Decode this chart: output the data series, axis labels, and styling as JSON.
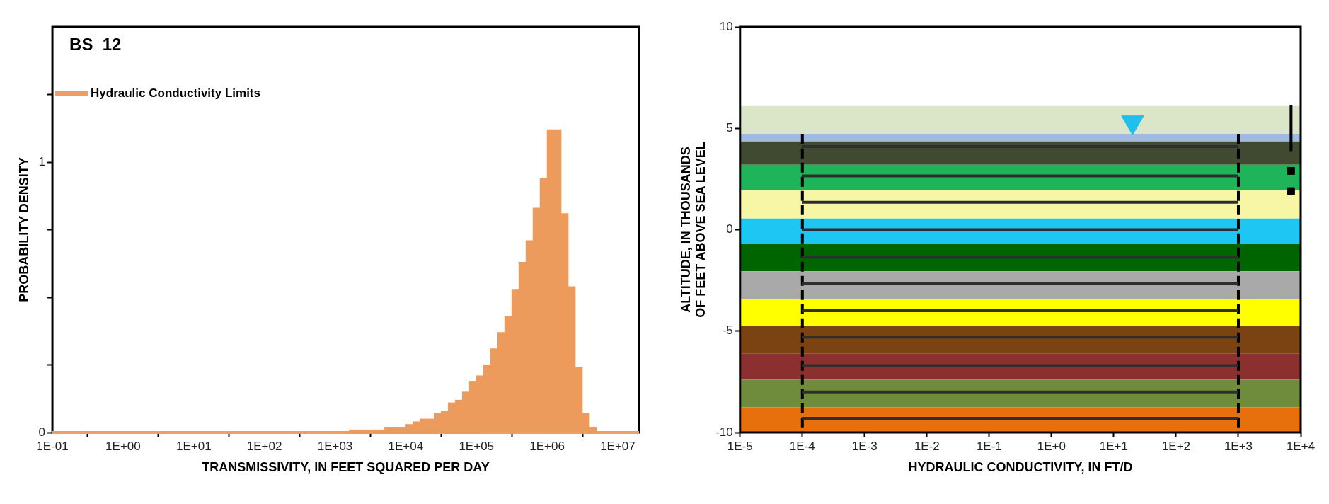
{
  "chart_data": [
    {
      "type": "histogram",
      "title": "BS_12",
      "xlabel": "TRANSMISSIVITY, IN FEET SQUARED PER DAY",
      "ylabel": "PROBABILITY DENSITY",
      "log": "x",
      "legend": "top left",
      "grid": false,
      "color": "#ec9b5c",
      "xlim": [
        0.1,
        20000000
      ],
      "xticks": [
        {
          "value": 0.1,
          "label": "1E-01"
        },
        {
          "value": 1,
          "label": "1E+00"
        },
        {
          "value": 10,
          "label": "1E+01"
        },
        {
          "value": 100,
          "label": "1E+02"
        },
        {
          "value": 1000,
          "label": "1E+03"
        },
        {
          "value": 10000,
          "label": "1E+04"
        },
        {
          "value": 100000,
          "label": "1E+05"
        },
        {
          "value": 1000000,
          "label": "1E+06"
        },
        {
          "value": 10000000,
          "label": "1E+07"
        }
      ],
      "ylim": [
        0,
        1.5
      ],
      "yticks": [
        0,
        {
          "value": 0.25,
          "label": null
        },
        {
          "value": 0.5,
          "label": null
        },
        {
          "value": 0.75,
          "label": null
        },
        1,
        {
          "value": 1.25,
          "label": null
        }
      ],
      "bins": [
        1000,
        1259,
        1585,
        1995,
        2512,
        3162,
        3981,
        5012,
        6310,
        7943,
        10000,
        12589,
        15849,
        19953,
        25119,
        31623,
        39811,
        50119,
        63096,
        79433,
        100000,
        125893,
        158489,
        199526,
        251189,
        316228,
        398107,
        501187,
        630957,
        794328,
        1000000,
        1258925,
        1584893,
        1995262,
        2511886,
        3162278,
        3981072,
        5011872
      ],
      "values": [
        0,
        0,
        0.01,
        0.01,
        0.01,
        0.01,
        0.01,
        0.02,
        0.02,
        0.02,
        0.03,
        0.04,
        0.05,
        0.05,
        0.07,
        0.08,
        0.11,
        0.12,
        0.15,
        0.19,
        0.21,
        0.25,
        0.31,
        0.37,
        0.43,
        0.53,
        0.63,
        0.71,
        0.83,
        0.94,
        1.12,
        1.12,
        0.81,
        0.54,
        0.24,
        0.07,
        0.02
      ],
      "series": [
        {
          "type": "line",
          "name": "Hydraulic Conductivity Limits",
          "color": "#ee9e64",
          "x": [
            0.1,
            20000000
          ],
          "values": [
            0,
            0
          ]
        }
      ]
    },
    {
      "type": "line",
      "xlabel": "HYDRAULIC CONDUCTIVITY, IN FT/D",
      "ylabel": "ALTITUDE, IN THOUSANDS OF FEET ABOVE SEA LEVEL",
      "log": "x",
      "legend": false,
      "grid": false,
      "xlim": [
        1e-05,
        10000
      ],
      "xticks": [
        {
          "value": 1e-05,
          "label": "1E-5"
        },
        {
          "value": 0.0001,
          "label": "1E-4"
        },
        {
          "value": 0.001,
          "label": "1E-3"
        },
        {
          "value": 0.01,
          "label": "1E-2"
        },
        {
          "value": 0.1,
          "label": "1E-1"
        },
        {
          "value": 1,
          "label": "1E+0"
        },
        {
          "value": 10,
          "label": "1E+1"
        },
        {
          "value": 100,
          "label": "1E+2"
        },
        {
          "value": 1000,
          "label": "1E+3"
        },
        {
          "value": 10000,
          "label": "1E+4"
        }
      ],
      "ylim": [
        -10,
        10
      ],
      "yticks": [
        -10,
        -5,
        0,
        5,
        10
      ],
      "bands": [
        {
          "axis": "y",
          "from": 4.7,
          "to": 6.1,
          "color": "#dbe5c8"
        },
        {
          "axis": "y",
          "from": 4.35,
          "to": 4.7,
          "color": "#9fbbe2"
        },
        {
          "axis": "y",
          "from": 3.2,
          "to": 4.35,
          "color": "#404a30"
        },
        {
          "axis": "y",
          "from": 1.95,
          "to": 3.2,
          "color": "#1fb35a"
        },
        {
          "axis": "y",
          "from": 0.55,
          "to": 1.95,
          "color": "#f6f6a4"
        },
        {
          "axis": "y",
          "from": -0.7,
          "to": 0.55,
          "color": "#1ec6f4"
        },
        {
          "axis": "y",
          "from": -2.05,
          "to": -0.7,
          "color": "#006400"
        },
        {
          "axis": "y",
          "from": -3.4,
          "to": -2.05,
          "color": "#a9a9a9"
        },
        {
          "axis": "y",
          "from": -4.75,
          "to": -3.4,
          "color": "#ffff00"
        },
        {
          "axis": "y",
          "from": -6.1,
          "to": -4.75,
          "color": "#7b4212"
        },
        {
          "axis": "y",
          "from": -7.4,
          "to": -6.1,
          "color": "#8b2f2f"
        },
        {
          "axis": "y",
          "from": -8.75,
          "to": -7.4,
          "color": "#6f8c3d"
        },
        {
          "axis": "y",
          "from": -10,
          "to": -8.75,
          "color": "#e8700c"
        }
      ],
      "series": [
        {
          "color": "#2e2e2e",
          "x": [
            0.0001,
            1000
          ],
          "values": [
            4.1,
            4.1
          ]
        },
        {
          "color": "#2e2e2e",
          "x": [
            0.0001,
            1000
          ],
          "values": [
            2.65,
            2.65
          ]
        },
        {
          "color": "#2e2e2e",
          "x": [
            0.0001,
            1000
          ],
          "values": [
            1.35,
            1.35
          ]
        },
        {
          "color": "#2e2e2e",
          "x": [
            0.0001,
            1000
          ],
          "values": [
            0,
            0
          ]
        },
        {
          "color": "#2e2e2e",
          "x": [
            0.0001,
            1000
          ],
          "values": [
            -1.35,
            -1.35
          ]
        },
        {
          "color": "#2e2e2e",
          "x": [
            0.0001,
            1000
          ],
          "values": [
            -2.65,
            -2.65
          ]
        },
        {
          "color": "#2e2e2e",
          "x": [
            0.0001,
            1000
          ],
          "values": [
            -4,
            -4
          ]
        },
        {
          "color": "#2e2e2e",
          "x": [
            0.0001,
            1000
          ],
          "values": [
            -5.3,
            -5.3
          ]
        },
        {
          "color": "#2e2e2e",
          "x": [
            0.0001,
            1000
          ],
          "values": [
            -6.7,
            -6.7
          ]
        },
        {
          "color": "#2e2e2e",
          "x": [
            0.0001,
            1000
          ],
          "values": [
            -8,
            -8
          ]
        },
        {
          "color": "#2e2e2e",
          "x": [
            0.0001,
            1000
          ],
          "values": [
            -9.3,
            -9.3
          ]
        },
        {
          "color": "#000000",
          "line_style": "dashed",
          "x": [
            0.0001,
            0.0001
          ],
          "values": [
            4.7,
            -10
          ]
        },
        {
          "color": "#000000",
          "line_style": "dashed",
          "x": [
            1000,
            1000
          ],
          "values": [
            4.7,
            -10
          ]
        },
        {
          "color": "#000000",
          "x": [
            7000,
            7000
          ],
          "values": [
            6.1,
            3.9
          ]
        },
        {
          "type": "scatter",
          "marker": "square",
          "color": "#000000",
          "x": [
            7000,
            7000
          ],
          "values": [
            2.9,
            1.9
          ]
        },
        {
          "type": "scatter",
          "marker": "triangle",
          "color": "#1fc0ee",
          "x": [
            20
          ],
          "values": [
            5.3
          ]
        }
      ]
    }
  ]
}
